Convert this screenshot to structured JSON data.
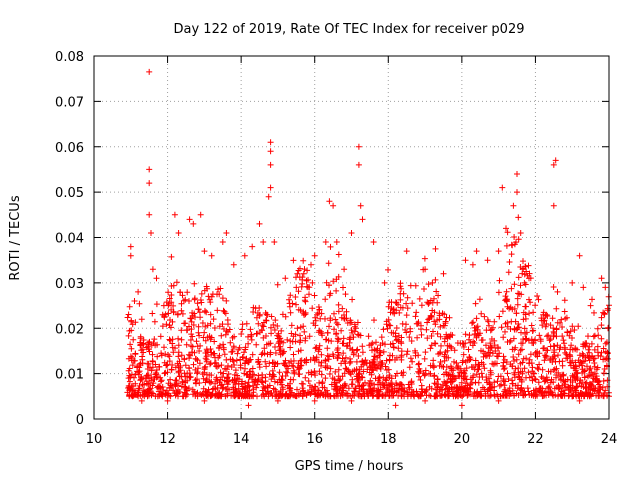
{
  "chart_data": {
    "type": "scatter",
    "title": "Day 122 of 2019, Rate Of TEC Index for receiver p029",
    "xlabel": "GPS time / hours",
    "ylabel": "ROTI / TECUs",
    "xlim": [
      10,
      24
    ],
    "ylim": [
      0,
      0.08
    ],
    "xticks": [
      10,
      12,
      14,
      16,
      18,
      20,
      22,
      24
    ],
    "yticks": [
      0,
      0.01,
      0.02,
      0.03,
      0.04,
      0.05,
      0.06,
      0.07,
      0.08
    ],
    "xtick_labels": [
      "10",
      "12",
      "14",
      "16",
      "18",
      "20",
      "22",
      "24"
    ],
    "ytick_labels": [
      "0",
      "0.01",
      "0.02",
      "0.03",
      "0.04",
      "0.05",
      "0.06",
      "0.07",
      "0.08"
    ],
    "grid": true,
    "marker": "+",
    "color": "#ff0000",
    "data_start_hour": 10.9,
    "data_end_hour": 24.0,
    "series": [
      {
        "name": "ROTI",
        "points": [
          [
            11.0,
            0.038
          ],
          [
            11.0,
            0.036
          ],
          [
            11.1,
            0.026
          ],
          [
            11.2,
            0.028
          ],
          [
            11.3,
            0.022
          ],
          [
            11.5,
            0.0765
          ],
          [
            11.5,
            0.055
          ],
          [
            11.5,
            0.052
          ],
          [
            11.5,
            0.045
          ],
          [
            11.55,
            0.041
          ],
          [
            11.6,
            0.033
          ],
          [
            11.7,
            0.031
          ],
          [
            11.9,
            0.025
          ],
          [
            12.2,
            0.045
          ],
          [
            12.3,
            0.041
          ],
          [
            12.6,
            0.044
          ],
          [
            12.7,
            0.043
          ],
          [
            12.9,
            0.045
          ],
          [
            13.0,
            0.037
          ],
          [
            13.2,
            0.036
          ],
          [
            13.5,
            0.039
          ],
          [
            13.6,
            0.041
          ],
          [
            13.8,
            0.034
          ],
          [
            14.1,
            0.036
          ],
          [
            14.3,
            0.038
          ],
          [
            14.5,
            0.043
          ],
          [
            14.6,
            0.039
          ],
          [
            14.8,
            0.061
          ],
          [
            14.8,
            0.059
          ],
          [
            14.8,
            0.056
          ],
          [
            14.8,
            0.051
          ],
          [
            14.75,
            0.049
          ],
          [
            14.9,
            0.039
          ],
          [
            15.2,
            0.031
          ],
          [
            15.5,
            0.029
          ],
          [
            15.9,
            0.034
          ],
          [
            16.0,
            0.036
          ],
          [
            16.3,
            0.039
          ],
          [
            16.4,
            0.048
          ],
          [
            16.5,
            0.047
          ],
          [
            16.6,
            0.039
          ],
          [
            16.8,
            0.033
          ],
          [
            17.0,
            0.041
          ],
          [
            17.2,
            0.06
          ],
          [
            17.2,
            0.056
          ],
          [
            17.25,
            0.047
          ],
          [
            17.3,
            0.044
          ],
          [
            17.6,
            0.039
          ],
          [
            17.9,
            0.03
          ],
          [
            18.5,
            0.037
          ],
          [
            19.0,
            0.033
          ],
          [
            19.2,
            0.03
          ],
          [
            19.5,
            0.032
          ],
          [
            20.1,
            0.035
          ],
          [
            20.3,
            0.034
          ],
          [
            20.4,
            0.037
          ],
          [
            20.7,
            0.035
          ],
          [
            21.0,
            0.037
          ],
          [
            21.1,
            0.051
          ],
          [
            21.2,
            0.042
          ],
          [
            21.4,
            0.047
          ],
          [
            21.5,
            0.054
          ],
          [
            21.5,
            0.05
          ],
          [
            21.6,
            0.041
          ],
          [
            21.7,
            0.03
          ],
          [
            22.5,
            0.056
          ],
          [
            22.55,
            0.057
          ],
          [
            22.5,
            0.047
          ],
          [
            22.6,
            0.028
          ],
          [
            23.0,
            0.03
          ],
          [
            23.2,
            0.036
          ],
          [
            23.3,
            0.029
          ],
          [
            23.5,
            0.025
          ],
          [
            23.8,
            0.031
          ],
          [
            23.9,
            0.029
          ],
          [
            11.3,
            0.004
          ],
          [
            12.0,
            0.004
          ],
          [
            13.0,
            0.004
          ],
          [
            14.2,
            0.003
          ],
          [
            15.0,
            0.004
          ],
          [
            16.0,
            0.004
          ],
          [
            17.0,
            0.004
          ],
          [
            18.2,
            0.003
          ],
          [
            19.0,
            0.004
          ],
          [
            20.0,
            0.003
          ],
          [
            21.0,
            0.004
          ],
          [
            22.0,
            0.005
          ],
          [
            23.2,
            0.004
          ],
          [
            24.0,
            0.005
          ]
        ]
      }
    ]
  }
}
